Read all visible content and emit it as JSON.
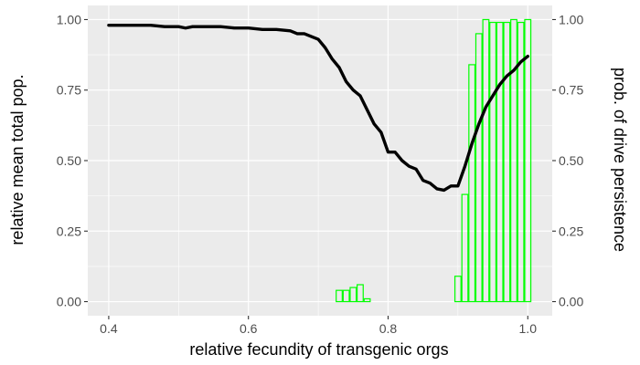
{
  "chart_data": {
    "type": "bar",
    "xlabel": "relative fecundity of transgenic orgs",
    "ylabel_left": "relative mean total pop.",
    "ylabel_right": "prob. of drive persistence",
    "xlim": [
      0.37,
      1.035
    ],
    "ylim": [
      -0.05,
      1.05
    ],
    "x_ticks": [
      0.4,
      0.6,
      0.8,
      1.0
    ],
    "x_tick_labels": [
      "0.4",
      "0.6",
      "0.8",
      "1.0"
    ],
    "y_ticks": [
      0,
      0.25,
      0.5,
      0.75,
      1.0
    ],
    "y_tick_labels": [
      "0.00",
      "0.25",
      "0.50",
      "0.75",
      "1.00"
    ],
    "grid": true,
    "background_color": "#ebebeb",
    "series": [
      {
        "kind": "bar",
        "color": "#00ff00",
        "x": [
          0.4,
          0.41,
          0.42,
          0.43,
          0.44,
          0.45,
          0.46,
          0.47,
          0.48,
          0.49,
          0.5,
          0.51,
          0.52,
          0.53,
          0.54,
          0.55,
          0.56,
          0.57,
          0.58,
          0.59,
          0.6,
          0.61,
          0.62,
          0.63,
          0.64,
          0.65,
          0.66,
          0.67,
          0.68,
          0.69,
          0.7,
          0.71,
          0.72,
          0.73,
          0.74,
          0.75,
          0.76,
          0.77,
          0.78,
          0.79,
          0.8,
          0.81,
          0.82,
          0.83,
          0.84,
          0.85,
          0.86,
          0.87,
          0.88,
          0.89,
          0.9,
          0.91,
          0.92,
          0.93,
          0.94,
          0.95,
          0.96,
          0.97,
          0.98,
          0.99,
          1.0
        ],
        "values": [
          0,
          0,
          0,
          0,
          0,
          0,
          0,
          0,
          0,
          0,
          0,
          0,
          0,
          0,
          0,
          0,
          0,
          0,
          0,
          0,
          0,
          0,
          0,
          0,
          0,
          0,
          0,
          0,
          0,
          0,
          0,
          0,
          0,
          0.04,
          0.04,
          0.05,
          0.06,
          0.01,
          0,
          0,
          0,
          0,
          0,
          0,
          0,
          0,
          0,
          0,
          0,
          0,
          0.09,
          0.38,
          0.84,
          0.95,
          1.0,
          0.99,
          0.99,
          0.99,
          1.0,
          0.99,
          1.0
        ]
      },
      {
        "kind": "line",
        "color": "#000000",
        "x": [
          0.4,
          0.42,
          0.44,
          0.46,
          0.48,
          0.5,
          0.51,
          0.52,
          0.54,
          0.56,
          0.58,
          0.6,
          0.62,
          0.64,
          0.66,
          0.67,
          0.68,
          0.7,
          0.71,
          0.72,
          0.73,
          0.74,
          0.75,
          0.76,
          0.77,
          0.78,
          0.79,
          0.8,
          0.81,
          0.82,
          0.83,
          0.84,
          0.85,
          0.86,
          0.87,
          0.88,
          0.89,
          0.9,
          0.91,
          0.92,
          0.93,
          0.94,
          0.95,
          0.96,
          0.97,
          0.98,
          0.99,
          1.0
        ],
        "values": [
          0.98,
          0.98,
          0.98,
          0.98,
          0.975,
          0.975,
          0.97,
          0.975,
          0.975,
          0.975,
          0.97,
          0.97,
          0.965,
          0.965,
          0.96,
          0.95,
          0.95,
          0.93,
          0.9,
          0.86,
          0.83,
          0.78,
          0.75,
          0.73,
          0.68,
          0.63,
          0.6,
          0.53,
          0.53,
          0.5,
          0.48,
          0.47,
          0.43,
          0.42,
          0.4,
          0.395,
          0.41,
          0.41,
          0.48,
          0.56,
          0.63,
          0.69,
          0.73,
          0.77,
          0.8,
          0.82,
          0.85,
          0.87
        ]
      }
    ]
  }
}
